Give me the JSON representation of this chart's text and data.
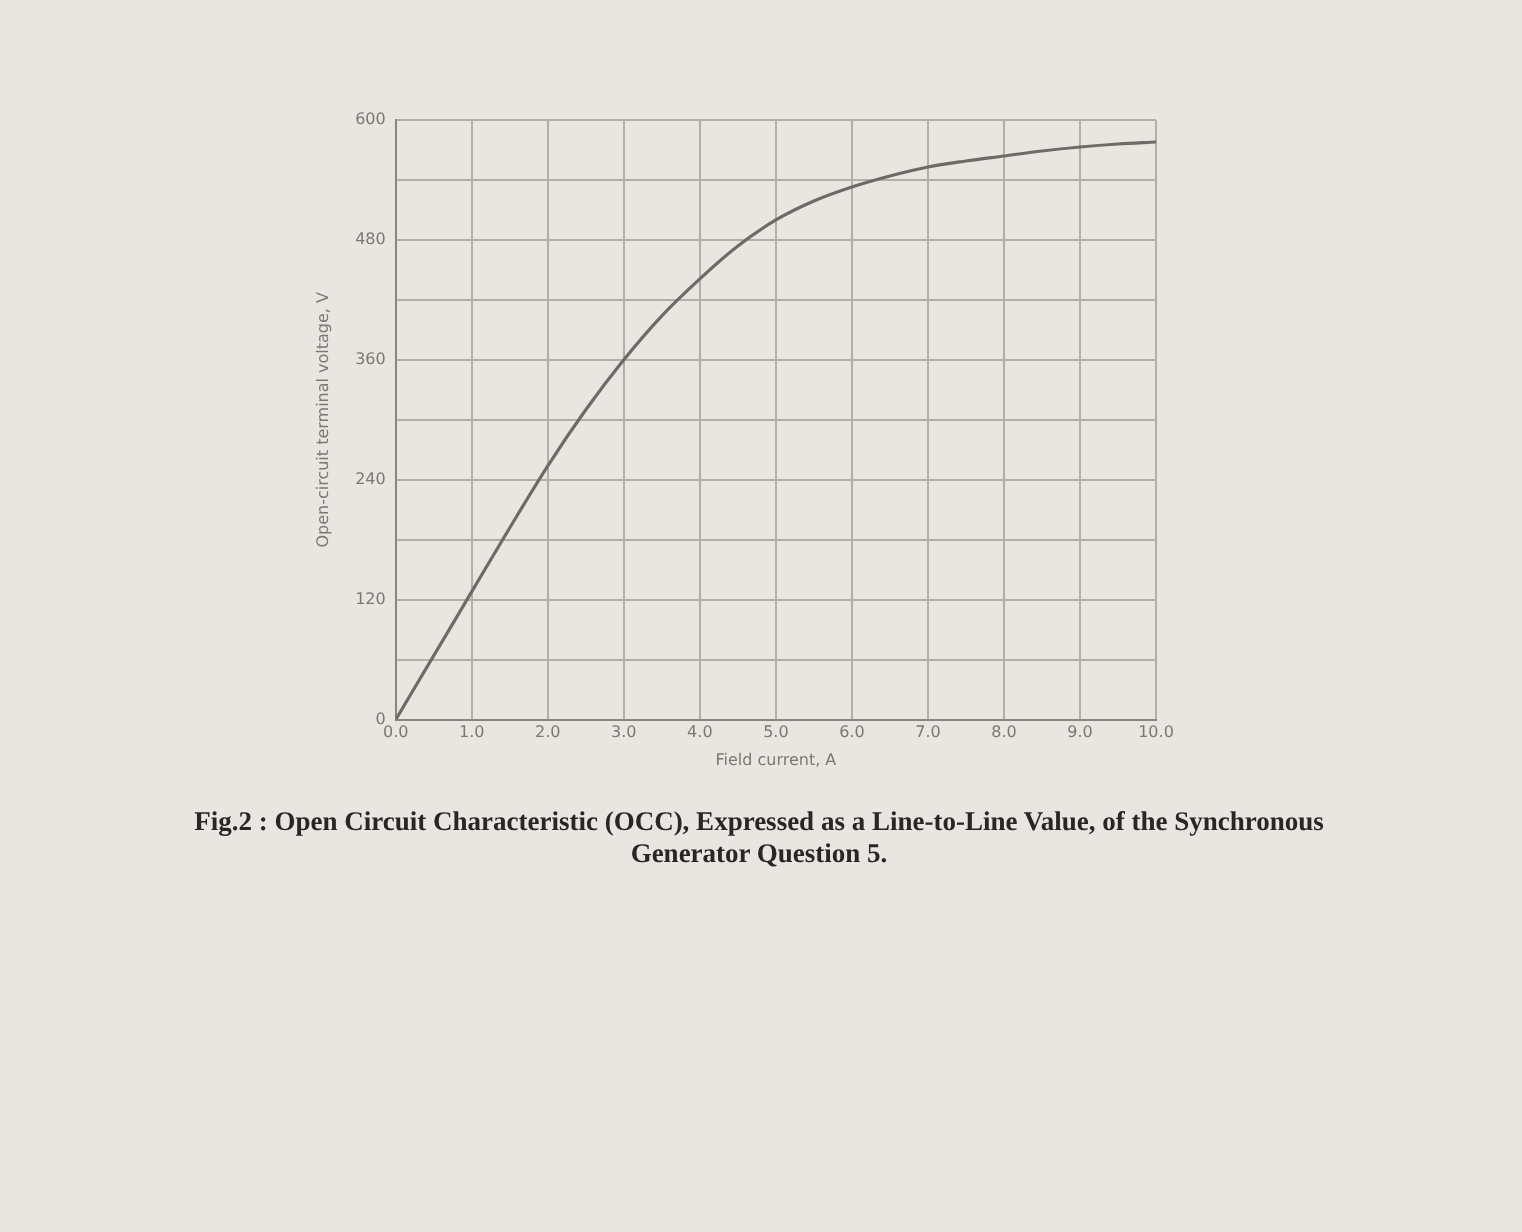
{
  "chart_data": {
    "type": "line",
    "xlabel": "Field current, A",
    "ylabel": "Open-circuit terminal voltage, V",
    "annotations": [
      "Fig.2 : Open Circuit Characteristic (OCC), Expressed as a Line-to-Line Value, of the Synchronous Generator Question 5."
    ],
    "x": [
      0,
      0.5,
      1.0,
      1.5,
      2.0,
      2.5,
      3.0,
      3.5,
      4.0,
      4.5,
      5.0,
      5.5,
      6.0,
      6.5,
      7.0,
      7.5,
      8.0,
      8.5,
      9.0,
      9.5,
      10.0
    ],
    "series": [
      {
        "color": "#6e6a66",
        "values": [
          0,
          64,
          128,
          192,
          254,
          310,
          360,
          404,
          441,
          474,
          500,
          519,
          533,
          544,
          553,
          559,
          564,
          569,
          573,
          576,
          578
        ]
      }
    ],
    "xlim": [
      0,
      10
    ],
    "xticks": [
      {
        "value": 0,
        "label": "0.0"
      },
      {
        "value": 1,
        "label": "1.0"
      },
      {
        "value": 2,
        "label": "2.0"
      },
      {
        "value": 3,
        "label": "3.0"
      },
      {
        "value": 4,
        "label": "4.0"
      },
      {
        "value": 5,
        "label": "5.0"
      },
      {
        "value": 6,
        "label": "6.0"
      },
      {
        "value": 7,
        "label": "7.0"
      },
      {
        "value": 8,
        "label": "8.0"
      },
      {
        "value": 9,
        "label": "9.0"
      },
      {
        "value": 10,
        "label": "10.0"
      }
    ],
    "ylim": [
      0,
      600
    ],
    "yticks": [
      0,
      {
        "value": 60,
        "label": null
      },
      120,
      {
        "value": 180,
        "label": null
      },
      240,
      {
        "value": 300,
        "label": null
      },
      360,
      {
        "value": 420,
        "label": null
      },
      480,
      {
        "value": 540,
        "label": null
      },
      600
    ],
    "grid": true,
    "marker": "none"
  }
}
